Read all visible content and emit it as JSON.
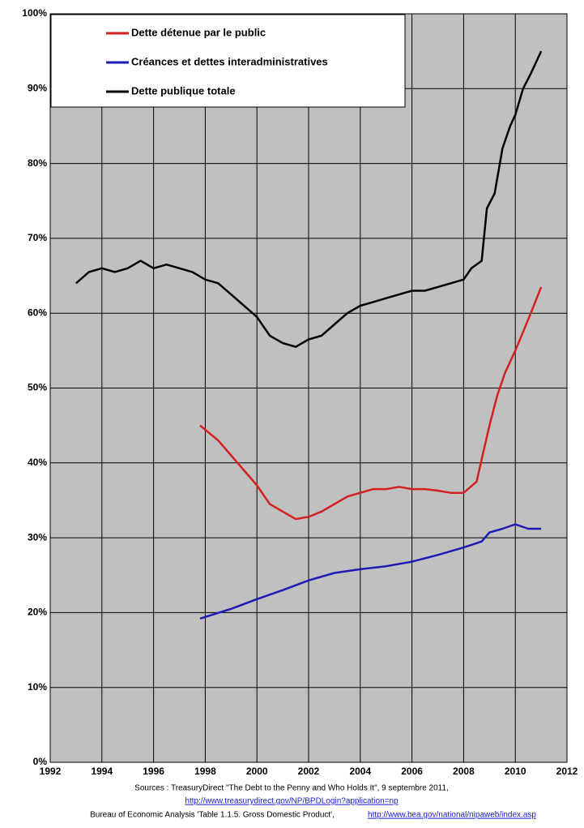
{
  "chart_data": {
    "type": "line",
    "series": [
      {
        "name": "Dette détenue par le public",
        "color": "#d42020",
        "x": [
          1997.8,
          1998.5,
          1999,
          1999.5,
          2000,
          2000.5,
          2001,
          2001.5,
          2002,
          2002.5,
          2003,
          2003.5,
          2004,
          2004.5,
          2005,
          2005.5,
          2006,
          2006.5,
          2007,
          2007.5,
          2008,
          2008.5,
          2008.8,
          2009,
          2009.3,
          2009.6,
          2010,
          2010.3,
          2010.6,
          2011
        ],
        "values": [
          45,
          43,
          41,
          39,
          37,
          34.5,
          33.5,
          32.5,
          32.8,
          33.5,
          34.5,
          35.5,
          36,
          36.5,
          36.5,
          36.8,
          36.5,
          36.5,
          36.3,
          36,
          36,
          37.5,
          42,
          45,
          49,
          52,
          55,
          57.5,
          60,
          63.5
        ]
      },
      {
        "name": "Créances et dettes interadministratives",
        "color": "#1c1cb4",
        "x": [
          1997.8,
          1999,
          2000,
          2001,
          2002,
          2003,
          2004,
          2005,
          2006,
          2007,
          2008,
          2008.7,
          2009,
          2009.5,
          2010,
          2010.5,
          2011
        ],
        "values": [
          19.2,
          20.5,
          21.8,
          23,
          24.3,
          25.3,
          25.8,
          26.2,
          26.8,
          27.7,
          28.7,
          29.5,
          30.7,
          31.2,
          31.8,
          31.2,
          31.2
        ]
      },
      {
        "name": "Dette publique totale",
        "color": "#000000",
        "x": [
          1993,
          1993.5,
          1994,
          1994.5,
          1995,
          1995.5,
          1996,
          1996.5,
          1997,
          1997.5,
          1998,
          1998.5,
          1999,
          1999.5,
          2000,
          2000.5,
          2001,
          2001.5,
          2002,
          2002.5,
          2003,
          2003.5,
          2004,
          2004.5,
          2005,
          2005.5,
          2006,
          2006.5,
          2007,
          2007.5,
          2008,
          2008.3,
          2008.7,
          2008.9,
          2009.2,
          2009.5,
          2009.8,
          2010,
          2010.3,
          2010.6,
          2011
        ],
        "values": [
          64,
          65.5,
          66,
          65.5,
          66,
          67,
          66,
          66.5,
          66,
          65.5,
          64.5,
          64,
          62.5,
          61,
          59.5,
          57,
          56,
          55.5,
          56.5,
          57,
          58.5,
          60,
          61,
          61.5,
          62,
          62.5,
          63,
          63,
          63.5,
          64,
          64.5,
          66,
          67,
          74,
          76,
          82,
          85,
          86.5,
          90,
          92,
          95
        ]
      }
    ],
    "xlim": [
      1992,
      2012
    ],
    "xticks": [
      1992,
      1994,
      1996,
      1998,
      2000,
      2002,
      2004,
      2006,
      2008,
      2010,
      2012
    ],
    "ylim": [
      0,
      100
    ],
    "yticks": [
      {
        "value": 0,
        "label": "0%"
      },
      {
        "value": 10,
        "label": "10%"
      },
      {
        "value": 20,
        "label": "20%"
      },
      {
        "value": 30,
        "label": "30%"
      },
      {
        "value": 40,
        "label": "40%"
      },
      {
        "value": 50,
        "label": "50%"
      },
      {
        "value": 60,
        "label": "60%"
      },
      {
        "value": 70,
        "label": "70%"
      },
      {
        "value": 80,
        "label": "80%"
      },
      {
        "value": 90,
        "label": "90%"
      },
      {
        "value": 100,
        "label": "100%"
      }
    ],
    "grid": true,
    "legend": "upper left",
    "sources": [
      "Sources : TreasuryDirect \"The Debt to the Penny and Who Holds It\", 9 septembre 2011,",
      "http://www.treasurydirect.gov/NP/BPDLogin?application=np",
      "Bureau of Economic Analysis 'Table 1.1.5. Gross Domestic Product',",
      "http://www.bea.gov/national/nipaweb/index.asp"
    ]
  }
}
